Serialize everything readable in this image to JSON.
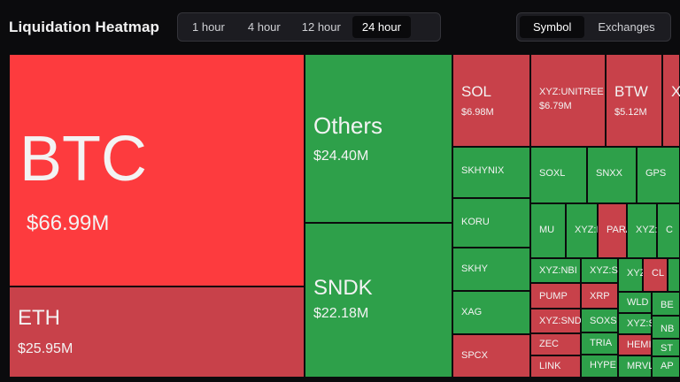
{
  "header": {
    "title": "Liquidation Heatmap",
    "timeframes": [
      "1 hour",
      "4 hour",
      "12 hour",
      "24 hour"
    ],
    "active_timeframe": "24 hour",
    "view_modes": [
      "Symbol",
      "Exchanges"
    ],
    "active_view_mode": "Symbol"
  },
  "colors": {
    "long_liquidation": "#d9403f",
    "short_liquidation": "#2ea04a",
    "background": "#0b0b0d"
  },
  "tiles": [
    {
      "symbol": "BTC",
      "value": "$66.99M",
      "color": "bred"
    },
    {
      "symbol": "ETH",
      "value": "$25.95M",
      "color": "mred"
    },
    {
      "symbol": "Others",
      "value": "$24.40M",
      "color": "green"
    },
    {
      "symbol": "SNDK",
      "value": "$22.18M",
      "color": "green"
    },
    {
      "symbol": "SOL",
      "value": "$6.98M",
      "color": "mred"
    },
    {
      "symbol": "XYZ:UNITREE",
      "value": "$6.79M",
      "color": "mred"
    },
    {
      "symbol": "BTW",
      "value": "$5.12M",
      "color": "mred"
    },
    {
      "symbol": "X",
      "value": "",
      "color": "mred"
    },
    {
      "symbol": "SKHYNIX",
      "value": "",
      "color": "green"
    },
    {
      "symbol": "SOXL",
      "value": "",
      "color": "green"
    },
    {
      "symbol": "SNXX",
      "value": "",
      "color": "green"
    },
    {
      "symbol": "GPS",
      "value": "",
      "color": "green"
    },
    {
      "symbol": "KORU",
      "value": "",
      "color": "green"
    },
    {
      "symbol": "MU",
      "value": "",
      "color": "green"
    },
    {
      "symbol": "XYZ:I",
      "value": "",
      "color": "green"
    },
    {
      "symbol": "PARA",
      "value": "",
      "color": "mred"
    },
    {
      "symbol": "XYZ:",
      "value": "",
      "color": "green"
    },
    {
      "symbol": "C",
      "value": "",
      "color": "green"
    },
    {
      "symbol": "SKHY",
      "value": "",
      "color": "green"
    },
    {
      "symbol": "XYZ:NBI",
      "value": "",
      "color": "green"
    },
    {
      "symbol": "XYZ:SI",
      "value": "",
      "color": "green"
    },
    {
      "symbol": "XYZ",
      "value": "",
      "color": "green"
    },
    {
      "symbol": "CL",
      "value": "",
      "color": "mred"
    },
    {
      "symbol": "",
      "value": "",
      "color": "green"
    },
    {
      "symbol": "XAG",
      "value": "",
      "color": "green"
    },
    {
      "symbol": "PUMP",
      "value": "",
      "color": "mred"
    },
    {
      "symbol": "XRP",
      "value": "",
      "color": "mred"
    },
    {
      "symbol": "WLD",
      "value": "",
      "color": "green"
    },
    {
      "symbol": "BE",
      "value": "",
      "color": "green"
    },
    {
      "symbol": "XYZ:SND",
      "value": "",
      "color": "mred"
    },
    {
      "symbol": "SOXS",
      "value": "",
      "color": "green"
    },
    {
      "symbol": "XYZ:S",
      "value": "",
      "color": "green"
    },
    {
      "symbol": "NB",
      "value": "",
      "color": "green"
    },
    {
      "symbol": "SPCX",
      "value": "",
      "color": "mred"
    },
    {
      "symbol": "ZEC",
      "value": "",
      "color": "mred"
    },
    {
      "symbol": "TRIA",
      "value": "",
      "color": "green"
    },
    {
      "symbol": "HEMI",
      "value": "",
      "color": "mred"
    },
    {
      "symbol": "ST",
      "value": "",
      "color": "green"
    },
    {
      "symbol": "LINK",
      "value": "",
      "color": "mred"
    },
    {
      "symbol": "HYPE",
      "value": "",
      "color": "green"
    },
    {
      "symbol": "MRVL",
      "value": "",
      "color": "green"
    },
    {
      "symbol": "AP",
      "value": "",
      "color": "green"
    }
  ]
}
